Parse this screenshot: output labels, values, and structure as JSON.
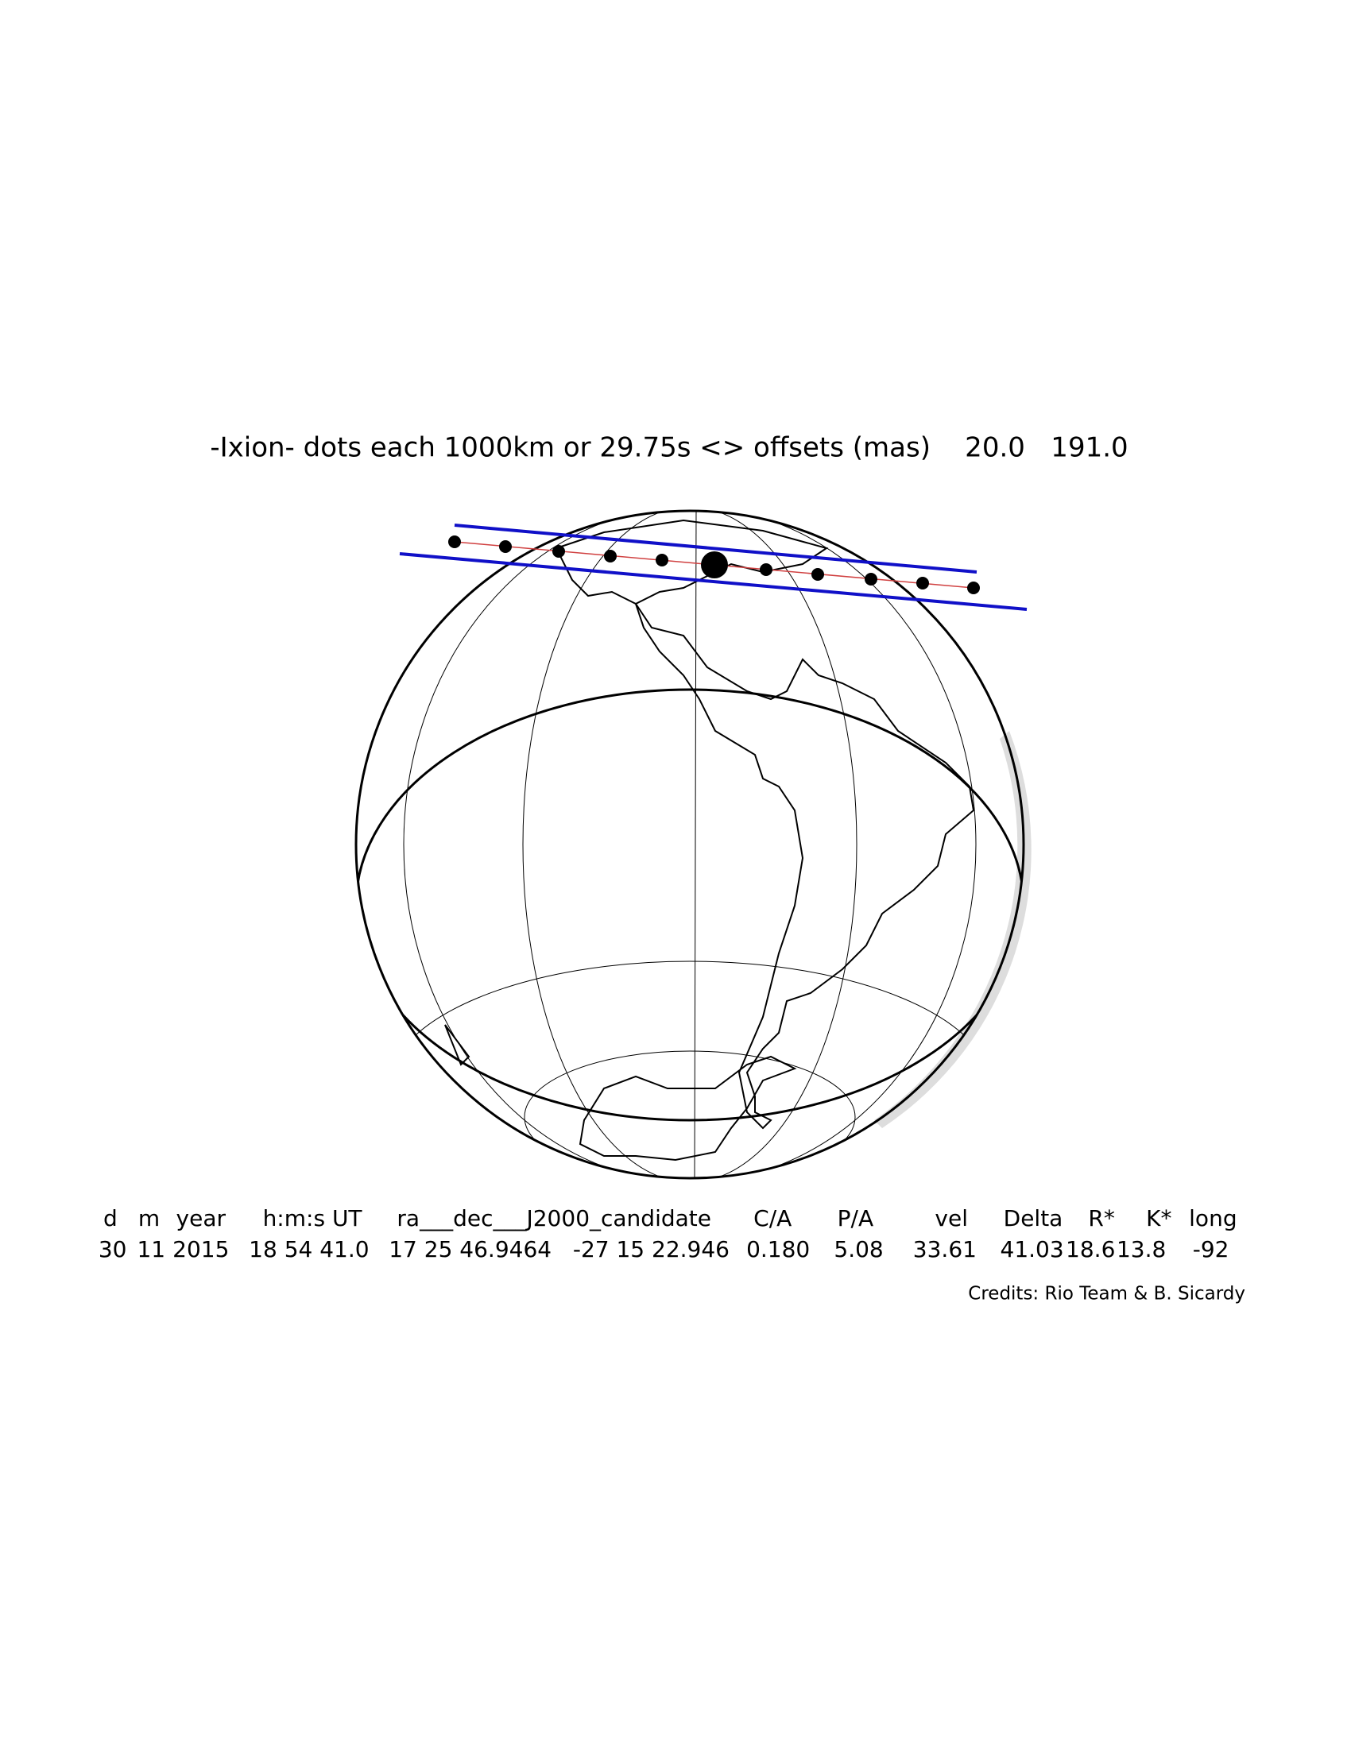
{
  "title": "-Ixion- dots each 1000km or 29.75s <> offsets (mas)    20.0   191.0",
  "table": {
    "headers": [
      "d",
      "m",
      "year",
      "h:m:s UT",
      "ra___dec___J2000_candidate",
      "C/A",
      "P/A",
      "vel",
      "Delta",
      "R*",
      "K*",
      "long"
    ],
    "values": [
      "30",
      "11",
      "2015",
      "18 54 41.0",
      "17 25 46.9464",
      "-27 15 22.946",
      "0.180",
      "5.08",
      "33.61",
      "41.03",
      "18.6",
      "13.8",
      "-92"
    ]
  },
  "credits": "Credits: Rio Team & B. Sicardy"
}
